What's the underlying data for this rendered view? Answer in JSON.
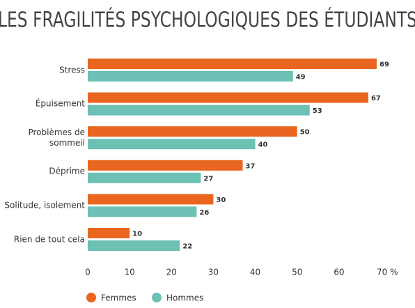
{
  "chart_data": {
    "type": "bar",
    "orientation": "horizontal",
    "title": "LES FRAGILITÉS PSYCHOLOGIQUES DES ÉTUDIANTS",
    "categories": [
      "Stress",
      "Épuisement",
      "Problèmes de sommeil",
      "Déprime",
      "Solitude, isolement",
      "Rien de tout cela"
    ],
    "series": [
      {
        "name": "Femmes",
        "color": "#e8661f",
        "values": [
          69,
          67,
          50,
          37,
          30,
          10
        ]
      },
      {
        "name": "Hommes",
        "color": "#6cc0b4",
        "values": [
          49,
          53,
          40,
          27,
          26,
          22
        ]
      }
    ],
    "xlim": [
      0,
      70
    ],
    "xticks": [
      0,
      10,
      20,
      30,
      40,
      50,
      60,
      {
        "value": 70,
        "label": "70 %"
      }
    ],
    "grid": false,
    "legend": "bottom"
  }
}
